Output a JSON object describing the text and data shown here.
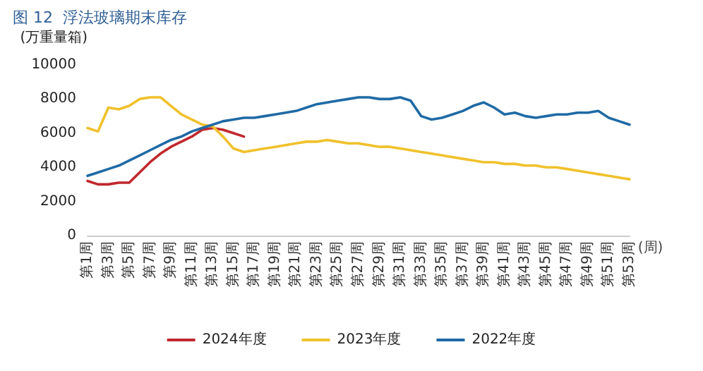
{
  "chart_data": {
    "type": "line",
    "title": "图 12  浮法玻璃期末库存",
    "ylabel": "(万重量箱)",
    "xlabel": "(周)",
    "categories": [
      "第1周",
      null,
      "第3周",
      null,
      "第5周",
      null,
      "第7周",
      null,
      "第9周",
      null,
      "第11周",
      null,
      "第13周",
      null,
      "第15周",
      null,
      "第17周",
      null,
      "第19周",
      null,
      "第21周",
      null,
      "第23周",
      null,
      "第25周",
      null,
      "第27周",
      null,
      "第29周",
      null,
      "第31周",
      null,
      "第33周",
      null,
      "第35周",
      null,
      "第37周",
      null,
      "第39周",
      null,
      "第41周",
      null,
      "第43周",
      null,
      "第45周",
      null,
      "第47周",
      null,
      "第49周",
      null,
      "第51周",
      null,
      "第53周"
    ],
    "series": [
      {
        "name": "2024年度",
        "color": "#c0282d",
        "values": [
          3200,
          3000,
          3000,
          3100,
          3100,
          3700,
          4300,
          4800,
          5200,
          5500,
          5800,
          6200,
          6300,
          6200,
          6000,
          5800,
          null,
          null,
          null,
          null,
          null,
          null,
          null,
          null,
          null,
          null,
          null,
          null,
          null,
          null,
          null,
          null,
          null,
          null,
          null,
          null,
          null,
          null,
          null,
          null,
          null,
          null,
          null,
          null,
          null,
          null,
          null,
          null,
          null,
          null,
          null,
          null,
          null
        ]
      },
      {
        "name": "2023年度",
        "color": "#f0c12c",
        "values": [
          6300,
          6100,
          7500,
          7400,
          7600,
          8000,
          8100,
          8100,
          7600,
          7100,
          6800,
          6500,
          6400,
          5800,
          5100,
          4900,
          5000,
          5100,
          5200,
          5300,
          5400,
          5500,
          5500,
          5600,
          5500,
          5400,
          5400,
          5300,
          5200,
          5200,
          5100,
          5000,
          4900,
          4800,
          4700,
          4600,
          4500,
          4400,
          4300,
          4300,
          4200,
          4200,
          4100,
          4100,
          4000,
          4000,
          3900,
          3800,
          3700,
          3600,
          3500,
          3400,
          3300
        ]
      },
      {
        "name": "2022年度",
        "color": "#1f6aa5",
        "values": [
          3500,
          3700,
          3900,
          4100,
          4400,
          4700,
          5000,
          5300,
          5600,
          5800,
          6100,
          6300,
          6500,
          6700,
          6800,
          6900,
          6900,
          7000,
          7100,
          7200,
          7300,
          7500,
          7700,
          7800,
          7900,
          8000,
          8100,
          8100,
          8000,
          8000,
          8100,
          7900,
          7000,
          6800,
          6900,
          7100,
          7300,
          7600,
          7800,
          7500,
          7100,
          7200,
          7000,
          6900,
          7000,
          7100,
          7100,
          7200,
          7200,
          7300,
          6900,
          6700,
          6500
        ]
      }
    ],
    "ylim": [
      0,
      10000
    ],
    "yticks": [
      0,
      2000,
      4000,
      6000,
      8000,
      10000
    ],
    "grid": false,
    "legend": "bottom",
    "marker": "none",
    "line_style": "solid"
  }
}
